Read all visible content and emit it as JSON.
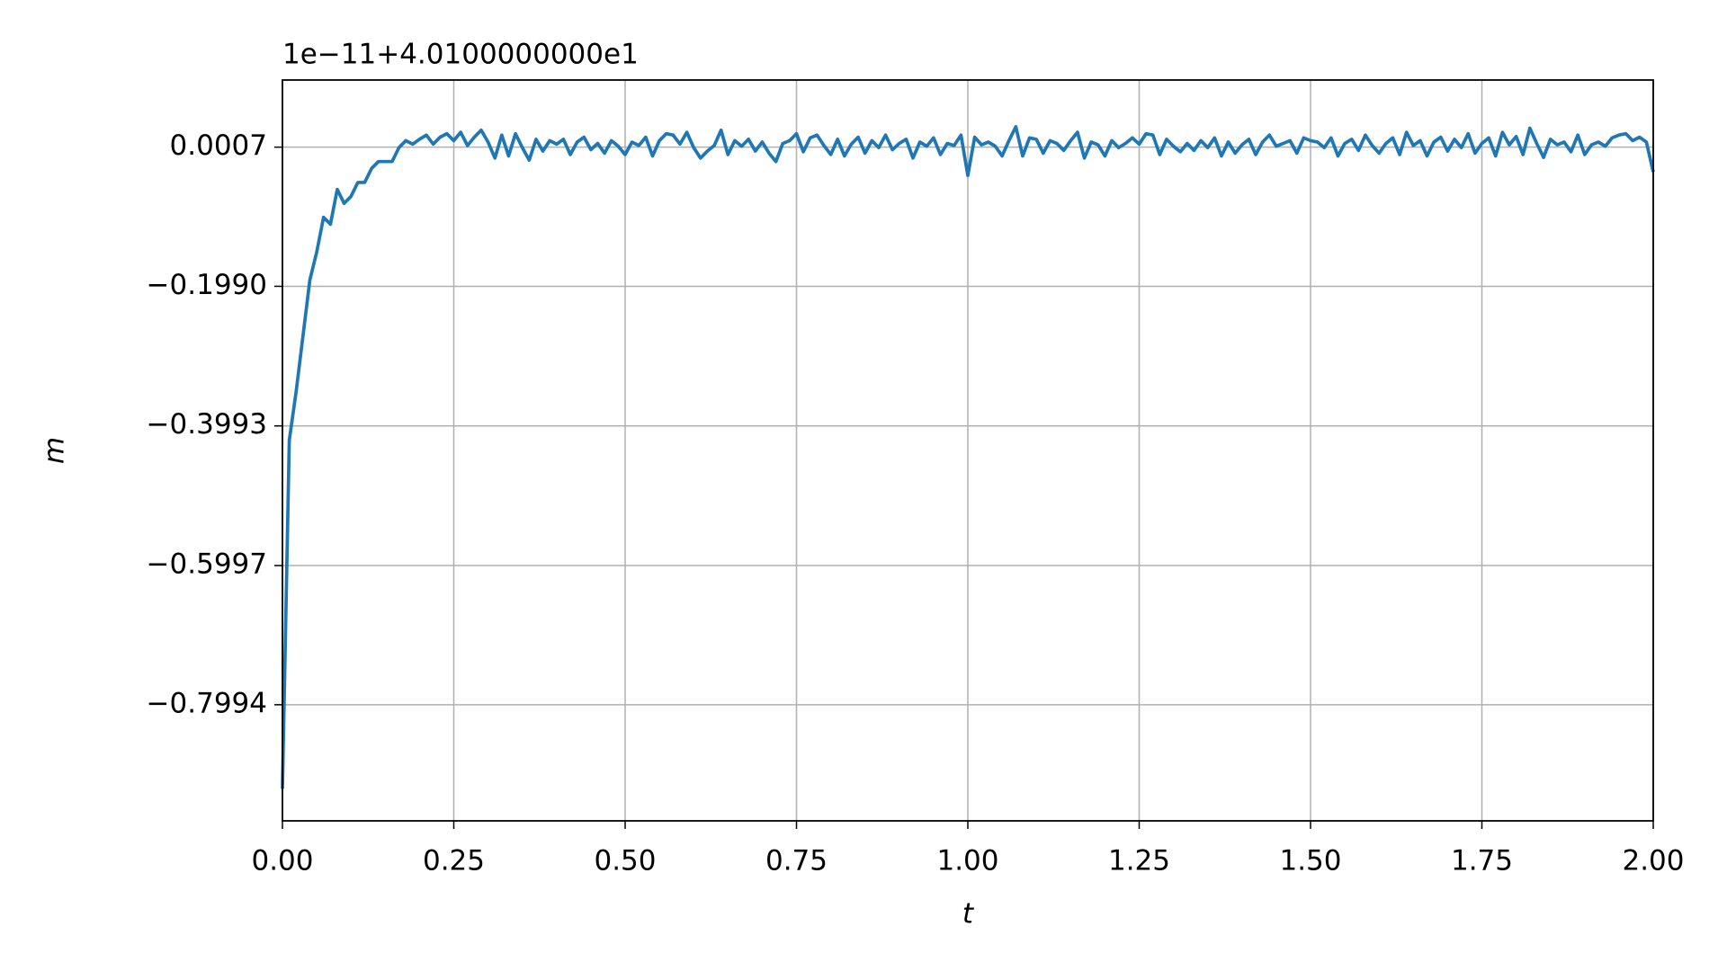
{
  "chart_data": {
    "type": "line",
    "y_offset_label": "1e−11+4.0100000000e1",
    "xlabel": "t",
    "ylabel": "m",
    "xlim": [
      0,
      2
    ],
    "ylim": [
      -0.966,
      0.097
    ],
    "grid": true,
    "xticks": [
      {
        "value": 0,
        "label": "0.00"
      },
      {
        "value": 0.25,
        "label": "0.25"
      },
      {
        "value": 0.5,
        "label": "0.50"
      },
      {
        "value": 0.75,
        "label": "0.75"
      },
      {
        "value": 1,
        "label": "1.00"
      },
      {
        "value": 1.25,
        "label": "1.25"
      },
      {
        "value": 1.5,
        "label": "1.50"
      },
      {
        "value": 1.75,
        "label": "1.75"
      },
      {
        "value": 2,
        "label": "2.00"
      }
    ],
    "yticks": [
      0.0007,
      {
        "value": -0.199,
        "label": "−0.1990"
      },
      {
        "value": -0.3993,
        "label": "−0.3993"
      },
      {
        "value": -0.5997,
        "label": "−0.5997"
      },
      {
        "value": -0.7994,
        "label": "−0.7994"
      }
    ],
    "x": [
      0,
      0.01,
      0.02,
      0.03,
      0.04,
      0.05,
      0.06,
      0.07,
      0.08,
      0.09,
      0.1,
      0.11,
      0.12,
      0.13,
      0.14,
      0.15,
      0.16,
      0.17,
      0.18,
      0.19,
      0.2,
      0.21,
      0.22,
      0.23,
      0.24,
      0.25,
      0.26,
      0.27,
      0.28,
      0.29,
      0.3,
      0.31,
      0.32,
      0.33,
      0.34,
      0.35,
      0.36,
      0.37,
      0.38,
      0.39,
      0.4,
      0.41,
      0.42,
      0.43,
      0.44,
      0.45,
      0.46,
      0.47,
      0.48,
      0.49,
      0.5,
      0.51,
      0.52,
      0.53,
      0.54,
      0.55,
      0.56,
      0.57,
      0.58,
      0.59,
      0.6,
      0.61,
      0.62,
      0.63,
      0.64,
      0.65,
      0.66,
      0.67,
      0.68,
      0.69,
      0.7,
      0.71,
      0.72,
      0.73,
      0.74,
      0.75,
      0.76,
      0.77,
      0.78,
      0.79,
      0.8,
      0.81,
      0.82,
      0.83,
      0.84,
      0.85,
      0.86,
      0.87,
      0.88,
      0.89,
      0.9,
      0.91,
      0.92,
      0.93,
      0.94,
      0.95,
      0.96,
      0.97,
      0.98,
      0.99,
      1,
      1.01,
      1.02,
      1.03,
      1.04,
      1.05,
      1.06,
      1.07,
      1.08,
      1.09,
      1.1,
      1.11,
      1.12,
      1.13,
      1.14,
      1.15,
      1.16,
      1.17,
      1.18,
      1.19,
      1.2,
      1.21,
      1.22,
      1.23,
      1.24,
      1.25,
      1.26,
      1.27,
      1.28,
      1.29,
      1.3,
      1.31,
      1.32,
      1.33,
      1.34,
      1.35,
      1.36,
      1.37,
      1.38,
      1.39,
      1.4,
      1.41,
      1.42,
      1.43,
      1.44,
      1.45,
      1.46,
      1.47,
      1.48,
      1.49,
      1.5,
      1.51,
      1.52,
      1.53,
      1.54,
      1.55,
      1.56,
      1.57,
      1.58,
      1.59,
      1.6,
      1.61,
      1.62,
      1.63,
      1.64,
      1.65,
      1.66,
      1.67,
      1.68,
      1.69,
      1.7,
      1.71,
      1.72,
      1.73,
      1.74,
      1.75,
      1.76,
      1.77,
      1.78,
      1.79,
      1.8,
      1.81,
      1.82,
      1.83,
      1.84,
      1.85,
      1.86,
      1.87,
      1.88,
      1.89,
      1.9,
      1.91,
      1.92,
      1.93,
      1.94,
      1.95,
      1.96,
      1.97,
      1.98,
      1.99,
      2
    ],
    "series": [
      {
        "color": "#1f77b4",
        "values": [
          -0.92,
          -0.42,
          -0.35,
          -0.27,
          -0.19,
          -0.15,
          -0.1,
          -0.11,
          -0.06,
          -0.08,
          -0.07,
          -0.05,
          -0.05,
          -0.03,
          -0.02,
          -0.02,
          -0.02,
          0,
          0.01,
          0.005,
          0.012,
          0.018,
          0.005,
          0.015,
          0.02,
          0.01,
          0.022,
          0.003,
          0.015,
          0.025,
          0.008,
          -0.015,
          0.018,
          -0.012,
          0.02,
          0,
          -0.018,
          0.012,
          -0.005,
          0.01,
          0.005,
          0.012,
          -0.01,
          0.008,
          0.015,
          -0.003,
          0.006,
          -0.008,
          0.01,
          0.002,
          -0.01,
          0.008,
          0.003,
          0.015,
          -0.012,
          0.01,
          0.02,
          0.018,
          0.005,
          0.022,
          0,
          -0.015,
          -0.005,
          0.003,
          0.025,
          -0.01,
          0.01,
          0.002,
          0.012,
          -0.005,
          0.008,
          -0.008,
          -0.02,
          0.006,
          0.01,
          0.02,
          -0.006,
          0.014,
          0.018,
          0.003,
          -0.01,
          0.012,
          -0.012,
          0.005,
          0.015,
          -0.008,
          0.01,
          0,
          0.018,
          -0.003,
          0.006,
          0.012,
          -0.015,
          0.008,
          0.002,
          0.014,
          -0.01,
          0.006,
          0.003,
          0.018,
          -0.04,
          0.015,
          0.004,
          0.008,
          0.002,
          -0.012,
          0.01,
          0.03,
          -0.012,
          0.014,
          0.012,
          -0.008,
          0.01,
          0.006,
          -0.004,
          0.01,
          0.022,
          -0.015,
          0.008,
          0.004,
          -0.012,
          0.01,
          0,
          0.006,
          0.014,
          0.005,
          0.02,
          0.018,
          -0.01,
          0.012,
          0.002,
          -0.006,
          0.006,
          -0.004,
          0.01,
          0,
          0.014,
          -0.012,
          0.008,
          -0.008,
          0.004,
          0.012,
          -0.01,
          0.008,
          0.018,
          0.002,
          0.006,
          0.01,
          -0.008,
          0.014,
          0.01,
          0.008,
          0,
          0.014,
          -0.012,
          0.006,
          0.012,
          -0.004,
          0.018,
          0.003,
          -0.008,
          0.006,
          0.014,
          -0.01,
          0.022,
          0.003,
          0.01,
          -0.012,
          0.008,
          0.015,
          -0.005,
          0.012,
          0,
          0.02,
          -0.008,
          0.006,
          0.014,
          -0.012,
          0.022,
          0.004,
          0.016,
          -0.01,
          0.028,
          0.006,
          -0.014,
          0.012,
          0.004,
          0.008,
          -0.006,
          0.018,
          -0.01,
          0.004,
          0.008,
          0.002,
          0.014,
          0.018,
          0.02,
          0.01,
          0.015,
          0.008,
          -0.035
        ]
      }
    ]
  }
}
